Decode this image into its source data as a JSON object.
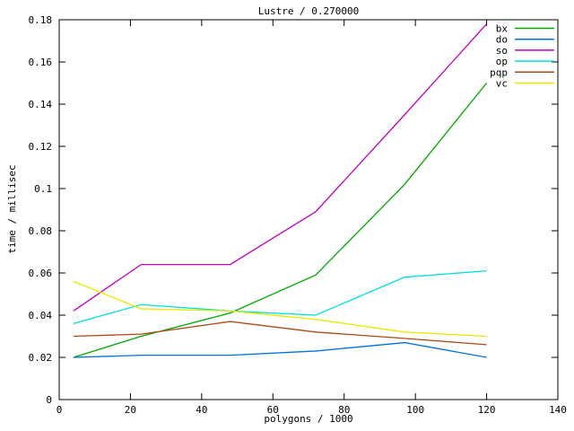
{
  "chart_data": {
    "type": "line",
    "title": "Lustre / 0.270000",
    "xlabel": "polygons / 1000",
    "ylabel": "time / millisec",
    "xlim": [
      0,
      140
    ],
    "ylim": [
      0,
      0.18
    ],
    "grid": false,
    "background": "#ffffff",
    "axis_color": "#000000",
    "legend_position": "top-right-inside",
    "xticks": {
      "values": [
        0,
        20,
        40,
        60,
        80,
        100,
        120,
        140
      ],
      "labels": [
        "0",
        "20",
        "40",
        "60",
        "80",
        "100",
        "120",
        "140"
      ]
    },
    "yticks": {
      "values": [
        0,
        0.02,
        0.04,
        0.06,
        0.08,
        0.1,
        0.12,
        0.14,
        0.16,
        0.18
      ],
      "labels": [
        "0",
        "0.02",
        "0.04",
        "0.06",
        "0.08",
        "0.1",
        "0.12",
        "0.14",
        "0.16",
        "0.18"
      ]
    },
    "x": [
      4,
      23,
      48,
      72,
      97,
      120
    ],
    "series": [
      {
        "name": "bx",
        "color": "#00A800",
        "values": [
          0.02,
          0.03,
          0.041,
          0.059,
          0.102,
          0.15
        ]
      },
      {
        "name": "do",
        "color": "#0070E0",
        "values": [
          0.02,
          0.021,
          0.021,
          0.023,
          0.027,
          0.02
        ]
      },
      {
        "name": "so",
        "color": "#C000C0",
        "values": [
          0.042,
          0.064,
          0.064,
          0.089,
          0.135,
          0.178
        ]
      },
      {
        "name": "op",
        "color": "#00E0E0",
        "values": [
          0.036,
          0.045,
          0.042,
          0.04,
          0.058,
          0.061
        ]
      },
      {
        "name": "pqp",
        "color": "#B04A14",
        "values": [
          0.03,
          0.031,
          0.037,
          0.032,
          0.029,
          0.026
        ]
      },
      {
        "name": "vc",
        "color": "#E8E800",
        "values": [
          0.056,
          0.043,
          0.042,
          0.038,
          0.032,
          0.03
        ]
      }
    ]
  }
}
